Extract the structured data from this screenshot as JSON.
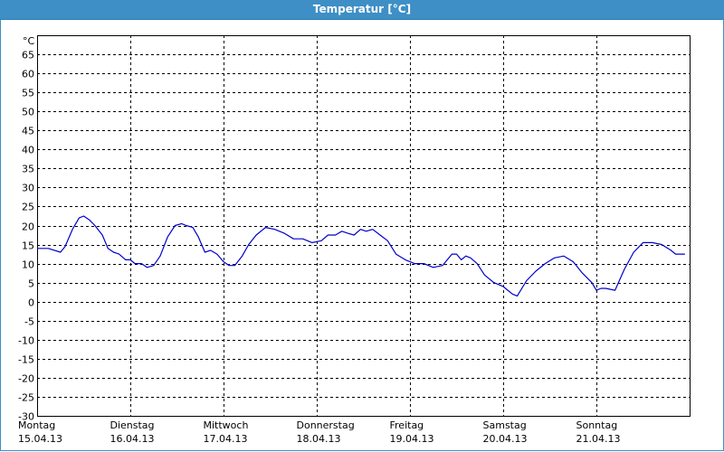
{
  "window": {
    "title": "Temperatur [°C]"
  },
  "chart_data": {
    "type": "line",
    "title": "Temperatur [°C]",
    "ylabel": "°C",
    "ylim": [
      -30,
      70
    ],
    "yticks": [
      65,
      60,
      55,
      50,
      45,
      40,
      35,
      30,
      25,
      20,
      15,
      10,
      5,
      0,
      -5,
      -10,
      -15,
      -20,
      -25,
      -30
    ],
    "xlim": [
      0,
      7
    ],
    "x_labels": [
      {
        "day": "Montag",
        "date": "15.04.13"
      },
      {
        "day": "Dienstag",
        "date": "16.04.13"
      },
      {
        "day": "Mittwoch",
        "date": "17.04.13"
      },
      {
        "day": "Donnerstag",
        "date": "18.04.13"
      },
      {
        "day": "Freitag",
        "date": "19.04.13"
      },
      {
        "day": "Samstag",
        "date": "20.04.13"
      },
      {
        "day": "Sonntag",
        "date": "21.04.13"
      }
    ],
    "grid": true,
    "line_color": "#0000cc",
    "series": [
      {
        "x": [
          0.0,
          0.12,
          0.25,
          0.3,
          0.38,
          0.45,
          0.5,
          0.56,
          0.62,
          0.7,
          0.76,
          0.82,
          0.88,
          0.95,
          1.0,
          1.05,
          1.12,
          1.18,
          1.25,
          1.32,
          1.4,
          1.48,
          1.55,
          1.6,
          1.67,
          1.73,
          1.8,
          1.86,
          1.93,
          2.0,
          2.06,
          2.12,
          2.2,
          2.27,
          2.35,
          2.45,
          2.55,
          2.65,
          2.75,
          2.85,
          2.95,
          3.05,
          3.12,
          3.2,
          3.27,
          3.33,
          3.4,
          3.47,
          3.53,
          3.6,
          3.68,
          3.76,
          3.85,
          3.95,
          4.05,
          4.15,
          4.25,
          4.35,
          4.4,
          4.45,
          4.5,
          4.55,
          4.6,
          4.65,
          4.72,
          4.8,
          4.9,
          5.0,
          5.05,
          5.1,
          5.15,
          5.25,
          5.35,
          5.45,
          5.55,
          5.65,
          5.75,
          5.85,
          5.95,
          6.0,
          6.05,
          6.1,
          6.2,
          6.3,
          6.4,
          6.5,
          6.6,
          6.7,
          6.8,
          6.85,
          6.95
        ],
        "y": [
          14,
          14,
          13,
          14.5,
          19,
          22,
          22.5,
          21.5,
          20,
          17.5,
          14,
          13,
          12.5,
          11,
          11,
          10,
          10,
          9,
          9.5,
          12,
          17,
          20,
          20.5,
          20,
          19.5,
          17,
          13,
          13.5,
          12.5,
          10.5,
          9.5,
          9.5,
          12,
          15,
          17.5,
          19.5,
          19,
          18,
          16.5,
          16.5,
          15.5,
          16,
          17.5,
          17.5,
          18.5,
          18,
          17.5,
          19,
          18.5,
          19,
          17.5,
          16,
          12.5,
          11,
          10,
          10,
          9,
          9.5,
          11,
          12.5,
          12.5,
          11,
          12,
          11.5,
          10,
          7,
          5,
          4,
          3,
          2,
          1.5,
          5.5,
          8,
          10,
          11.5,
          12,
          10.5,
          7.5,
          5,
          3,
          3.5,
          3.5,
          3,
          8.5,
          13,
          15.5,
          15.5,
          15,
          13.5,
          12.5,
          12.5
        ]
      }
    ]
  }
}
